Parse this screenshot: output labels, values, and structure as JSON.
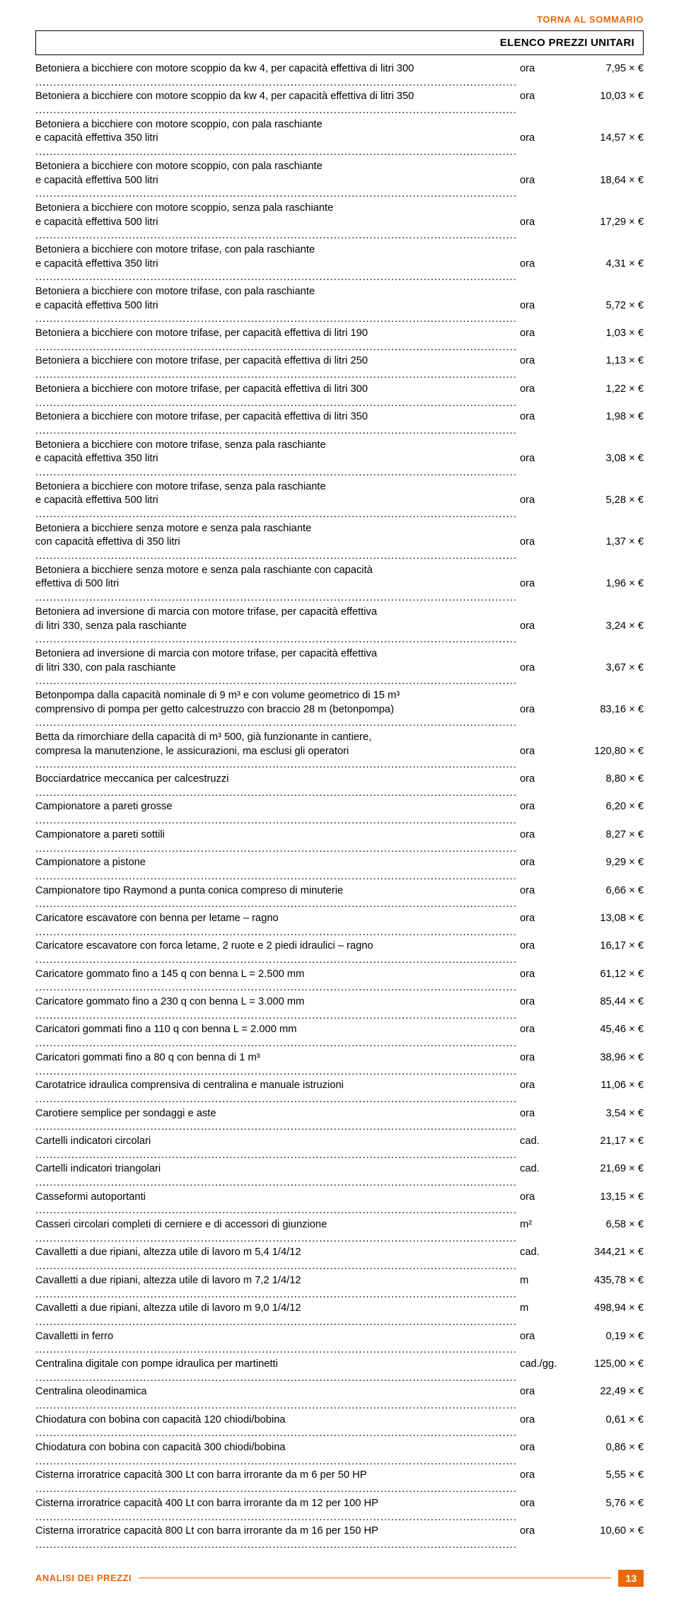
{
  "linkTop": "TORNA AL SOMMARIO",
  "headerTitle": "ELENCO PREZZI UNITARI",
  "currency": "€",
  "rows": [
    {
      "lines": [
        "Betoniera a bicchiere con motore scoppio da kw 4, per capacità effettiva di litri 300"
      ],
      "unit": "ora",
      "price": "7,95 ×"
    },
    {
      "lines": [
        "Betoniera a bicchiere con motore scoppio da kw 4, per capacità effettiva di litri 350"
      ],
      "unit": "ora",
      "price": "10,03 ×"
    },
    {
      "lines": [
        "Betoniera a bicchiere con motore scoppio, con pala raschiante",
        "e capacità effettiva 350 litri"
      ],
      "unit": "ora",
      "price": "14,57 ×"
    },
    {
      "lines": [
        "Betoniera a bicchiere con motore scoppio, con pala raschiante",
        "e capacità effettiva 500 litri"
      ],
      "unit": "ora",
      "price": "18,64 ×"
    },
    {
      "lines": [
        "Betoniera a bicchiere con motore scoppio, senza pala raschiante",
        "e capacità effettiva 500 litri"
      ],
      "unit": "ora",
      "price": "17,29 ×"
    },
    {
      "lines": [
        "Betoniera a bicchiere con motore trifase, con pala raschiante",
        "e capacità effettiva 350 litri"
      ],
      "unit": "ora",
      "price": "4,31 ×"
    },
    {
      "lines": [
        "Betoniera a bicchiere con motore trifase, con pala raschiante",
        "e capacità effettiva 500 litri"
      ],
      "unit": "ora",
      "price": "5,72 ×"
    },
    {
      "lines": [
        "Betoniera a bicchiere con motore trifase, per capacità effettiva di litri 190"
      ],
      "unit": "ora",
      "price": "1,03 ×"
    },
    {
      "lines": [
        "Betoniera a bicchiere con motore trifase, per capacità effettiva di litri 250"
      ],
      "unit": "ora",
      "price": "1,13 ×"
    },
    {
      "lines": [
        "Betoniera a bicchiere con motore trifase, per capacità effettiva di litri 300"
      ],
      "unit": "ora",
      "price": "1,22 ×"
    },
    {
      "lines": [
        "Betoniera a bicchiere con motore trifase, per capacità effettiva di litri 350"
      ],
      "unit": "ora",
      "price": "1,98 ×"
    },
    {
      "lines": [
        "Betoniera a bicchiere con motore trifase, senza pala raschiante",
        "e capacità effettiva 350 litri"
      ],
      "unit": "ora",
      "price": "3,08 ×"
    },
    {
      "lines": [
        "Betoniera a bicchiere con motore trifase, senza pala raschiante",
        "e capacità effettiva 500 litri"
      ],
      "unit": "ora",
      "price": "5,28 ×"
    },
    {
      "lines": [
        "Betoniera a bicchiere senza motore e senza pala raschiante",
        "con capacità effettiva di 350 litri"
      ],
      "unit": "ora",
      "price": "1,37 ×"
    },
    {
      "lines": [
        "Betoniera a bicchiere senza motore e senza pala raschiante con capacità",
        "effettiva di 500 litri"
      ],
      "unit": "ora",
      "price": "1,96 ×"
    },
    {
      "lines": [
        "Betoniera ad inversione di marcia con motore trifase, per capacità effettiva",
        "di litri 330, senza pala raschiante"
      ],
      "unit": "ora",
      "price": "3,24 ×"
    },
    {
      "lines": [
        "Betoniera ad inversione di marcia con motore trifase, per capacità effettiva",
        "di litri 330, con pala raschiante"
      ],
      "unit": "ora",
      "price": "3,67 ×"
    },
    {
      "lines": [
        "Betonpompa dalla capacità nominale di 9 m³ e con volume geometrico di 15 m³",
        "comprensivo di pompa per getto calcestruzzo con braccio 28 m (betonpompa)"
      ],
      "unit": "ora",
      "price": "83,16 ×"
    },
    {
      "lines": [
        "Betta da rimorchiare della capacità di m³ 500, già funzionante in cantiere,",
        "compresa la manutenzione, le assicurazioni, ma esclusi gli operatori"
      ],
      "unit": "ora",
      "price": "120,80 ×"
    },
    {
      "lines": [
        "Bocciardatrice meccanica per calcestruzzi"
      ],
      "unit": "ora",
      "price": "8,80 ×"
    },
    {
      "lines": [
        "Campionatore a pareti grosse"
      ],
      "unit": "ora",
      "price": "6,20 ×"
    },
    {
      "lines": [
        "Campionatore a pareti sottili"
      ],
      "unit": "ora",
      "price": "8,27 ×"
    },
    {
      "lines": [
        "Campionatore a pistone"
      ],
      "unit": "ora",
      "price": "9,29 ×"
    },
    {
      "lines": [
        "Campionatore tipo Raymond a punta conica compreso di minuterie"
      ],
      "unit": "ora",
      "price": "6,66 ×"
    },
    {
      "lines": [
        "Caricatore escavatore con benna per letame – ragno"
      ],
      "unit": "ora",
      "price": "13,08 ×"
    },
    {
      "lines": [
        "Caricatore escavatore con forca letame, 2 ruote e 2 piedi idraulici – ragno"
      ],
      "unit": "ora",
      "price": "16,17 ×"
    },
    {
      "lines": [
        "Caricatore gommato fino a 145 q con benna L = 2.500 mm"
      ],
      "unit": "ora",
      "price": "61,12 ×"
    },
    {
      "lines": [
        "Caricatore gommato fino a 230 q con benna L = 3.000 mm"
      ],
      "unit": "ora",
      "price": "85,44 ×"
    },
    {
      "lines": [
        "Caricatori gommati fino a 110 q con benna L = 2.000 mm"
      ],
      "unit": "ora",
      "price": "45,46 ×"
    },
    {
      "lines": [
        "Caricatori gommati fino a 80 q con benna di 1 m³"
      ],
      "unit": "ora",
      "price": "38,96 ×"
    },
    {
      "lines": [
        "Carotatrice idraulica comprensiva di centralina e manuale istruzioni"
      ],
      "unit": "ora",
      "price": "11,06 ×"
    },
    {
      "lines": [
        "Carotiere semplice per sondaggi e aste"
      ],
      "unit": "ora",
      "price": "3,54 ×"
    },
    {
      "lines": [
        "Cartelli indicatori circolari"
      ],
      "unit": "cad.",
      "price": "21,17 ×"
    },
    {
      "lines": [
        "Cartelli indicatori triangolari"
      ],
      "unit": "cad.",
      "price": "21,69 ×"
    },
    {
      "lines": [
        "Casseformi autoportanti"
      ],
      "unit": "ora",
      "price": "13,15 ×"
    },
    {
      "lines": [
        "Casseri circolari completi di cerniere e di accessori di giunzione"
      ],
      "unit": "m²",
      "price": "6,58 ×"
    },
    {
      "lines": [
        "Cavalletti a due ripiani, altezza utile di lavoro m 5,4 1/4/12"
      ],
      "unit": "cad.",
      "price": "344,21 ×"
    },
    {
      "lines": [
        "Cavalletti a due ripiani, altezza utile di lavoro m 7,2 1/4/12"
      ],
      "unit": "m",
      "price": "435,78 ×"
    },
    {
      "lines": [
        "Cavalletti a due ripiani, altezza utile di lavoro m 9,0 1/4/12"
      ],
      "unit": "m",
      "price": "498,94 ×"
    },
    {
      "lines": [
        "Cavalletti in ferro"
      ],
      "unit": "ora",
      "price": "0,19 ×"
    },
    {
      "lines": [
        "Centralina digitale con pompe idraulica per martinetti"
      ],
      "unit": "cad./gg.",
      "price": "125,00 ×"
    },
    {
      "lines": [
        "Centralina oleodinamica"
      ],
      "unit": "ora",
      "price": "22,49 ×"
    },
    {
      "lines": [
        "Chiodatura con bobina con capacità 120 chiodi/bobina"
      ],
      "unit": "ora",
      "price": "0,61 ×"
    },
    {
      "lines": [
        "Chiodatura con bobina con capacità 300 chiodi/bobina"
      ],
      "unit": "ora",
      "price": "0,86 ×"
    },
    {
      "lines": [
        "Cisterna irroratrice capacità 300 Lt con barra irrorante da m 6 per 50 HP"
      ],
      "unit": "ora",
      "price": "5,55 ×"
    },
    {
      "lines": [
        "Cisterna irroratrice capacità 400 Lt con barra irrorante da m 12 per 100 HP"
      ],
      "unit": "ora",
      "price": "5,76 ×"
    },
    {
      "lines": [
        "Cisterna irroratrice capacità 800 Lt con barra irrorante da m 16 per 150 HP"
      ],
      "unit": "ora",
      "price": "10,60 ×"
    }
  ],
  "footerTitle": "ANALISI DEI PREZZI",
  "pageNumber": "13",
  "colors": {
    "accent": "#ec6707",
    "text": "#000000",
    "background": "#ffffff"
  },
  "typography": {
    "body_fontsize": 14.7,
    "header_fontsize": 15,
    "link_fontsize": 13,
    "footer_fontsize": 13
  }
}
